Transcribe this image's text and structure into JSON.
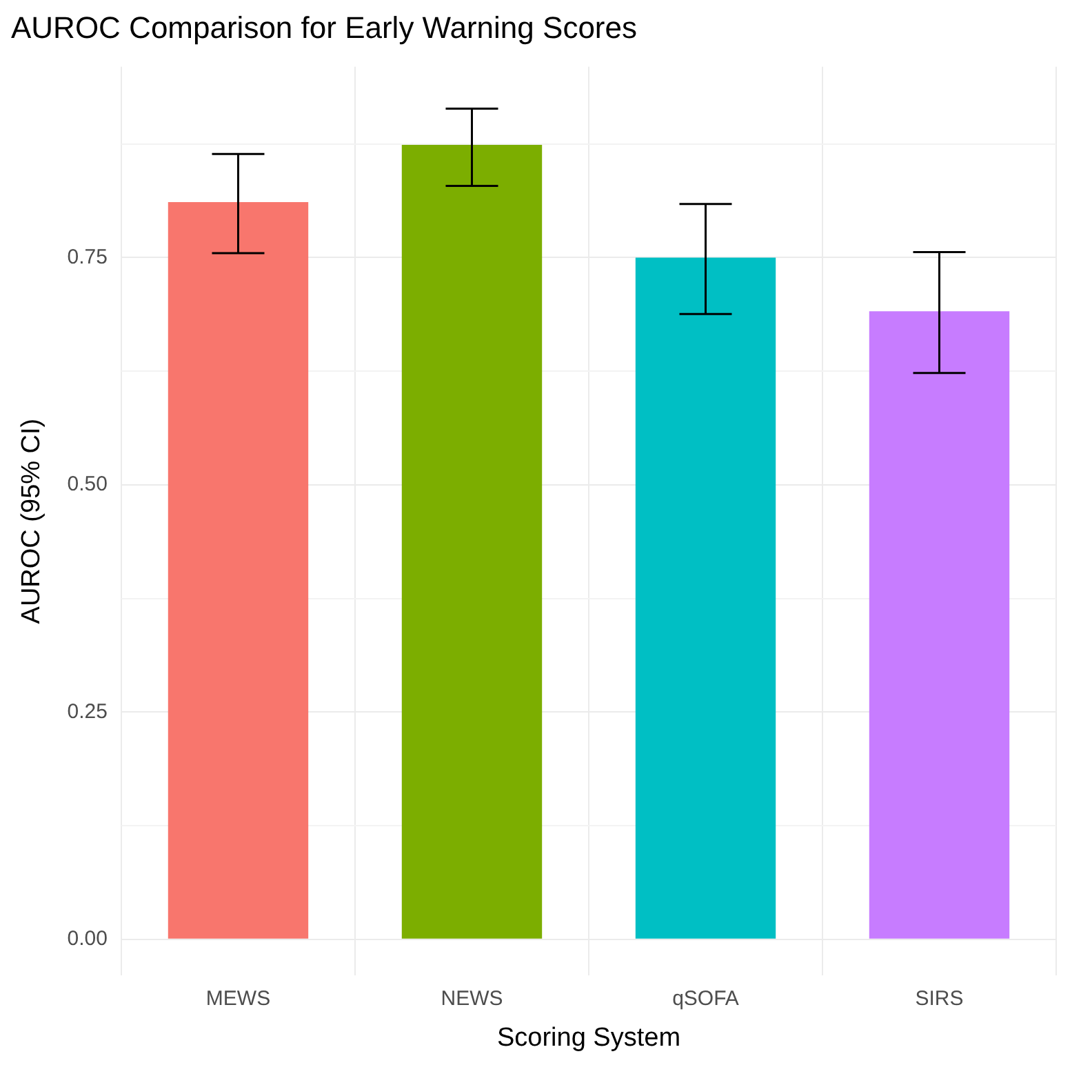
{
  "chart_data": {
    "type": "bar",
    "title": "AUROC Comparison for Early Warning Scores",
    "xlabel": "Scoring System",
    "ylabel": "AUROC (95% CI)",
    "categories": [
      "MEWS",
      "NEWS",
      "qSOFA",
      "SIRS"
    ],
    "values": [
      0.811,
      0.874,
      0.75,
      0.691
    ],
    "colors": [
      "#f8766d",
      "#7cae00",
      "#00bfc4",
      "#c77cff"
    ],
    "errors": [
      [
        0.755,
        0.864
      ],
      [
        0.829,
        0.914
      ],
      [
        0.688,
        0.809
      ],
      [
        0.623,
        0.756
      ]
    ],
    "ylim": [
      -0.04,
      0.96
    ],
    "yticks": [
      {
        "value": 0,
        "label": "0.00"
      },
      {
        "value": 0.125,
        "label": null
      },
      0.25,
      {
        "value": 0.375,
        "label": null
      },
      {
        "value": 0.5,
        "label": "0.50"
      },
      {
        "value": 0.625,
        "label": null
      },
      0.75,
      {
        "value": 0.875,
        "label": null
      }
    ],
    "grid": true,
    "legend": false
  }
}
